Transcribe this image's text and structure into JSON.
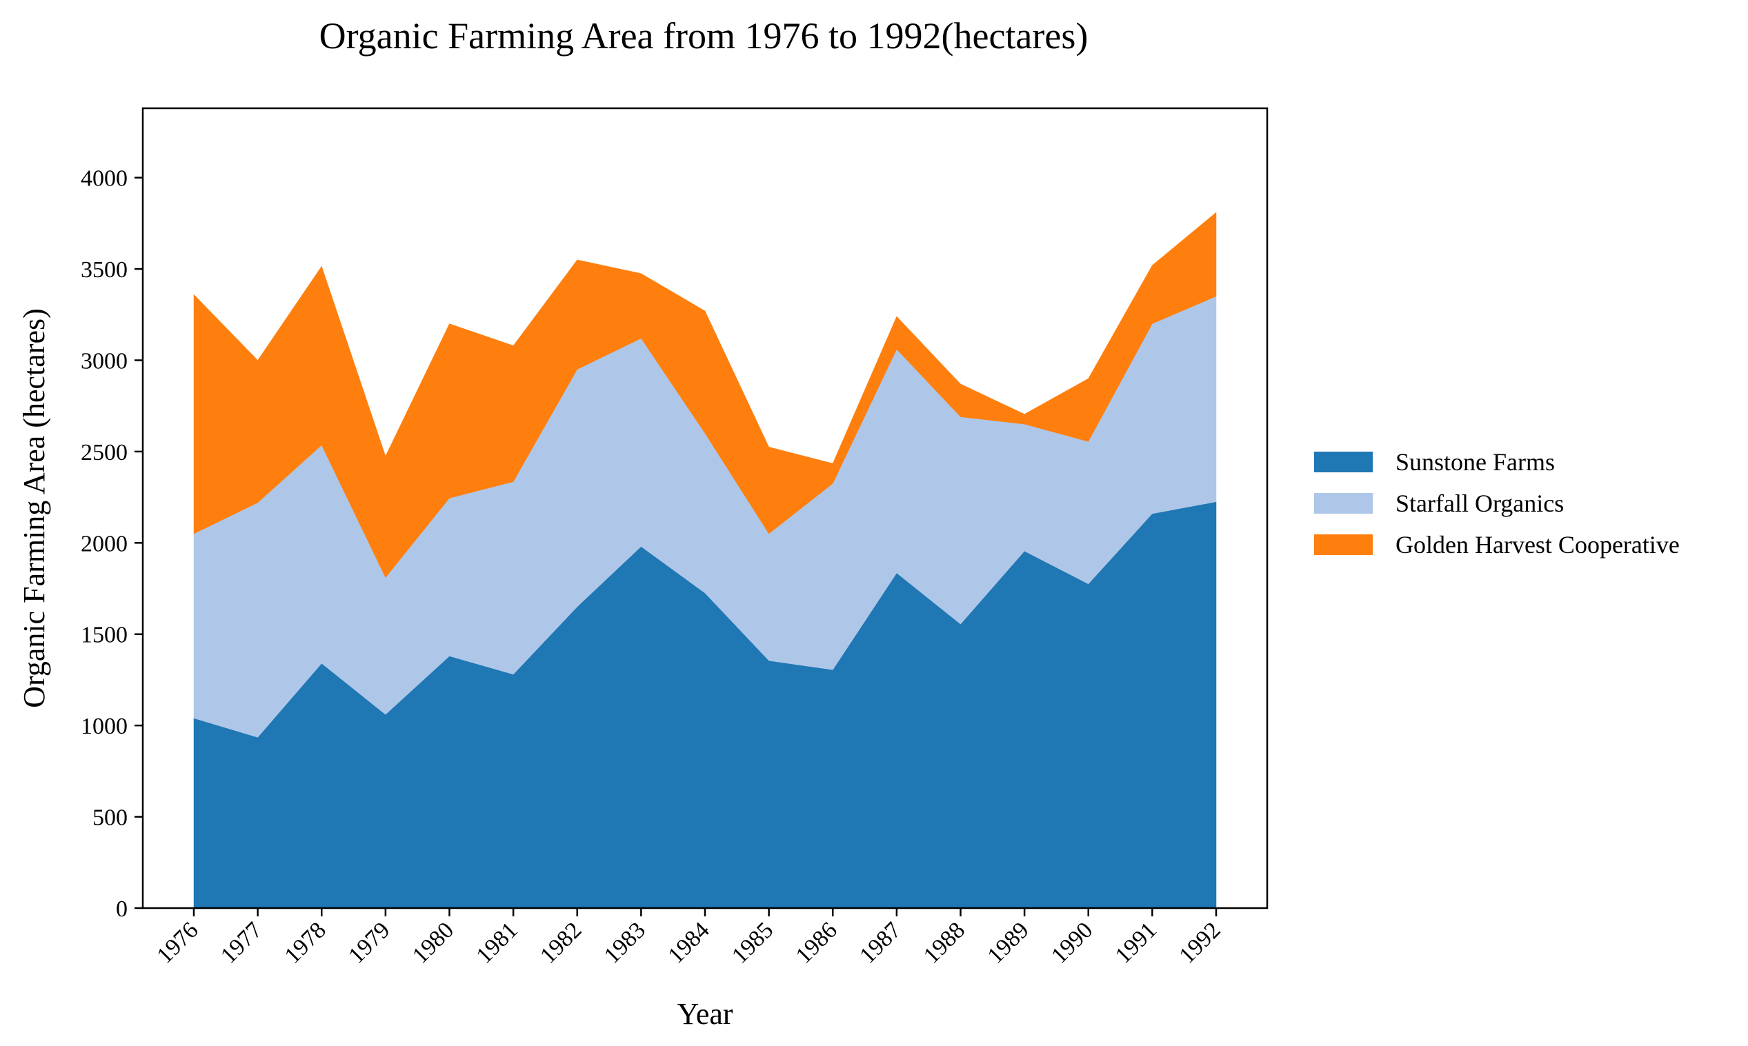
{
  "chart_data": {
    "type": "area",
    "stacked": true,
    "title": "Organic Farming Area from 1976 to 1992(hectares)",
    "xlabel": "Year",
    "ylabel": "Organic Farming Area (hectares)",
    "x": [
      "1976",
      "1977",
      "1978",
      "1979",
      "1980",
      "1981",
      "1982",
      "1983",
      "1984",
      "1985",
      "1986",
      "1987",
      "1988",
      "1989",
      "1990",
      "1991",
      "1992"
    ],
    "ylim": [
      0,
      4380
    ],
    "yticks": [
      0,
      500,
      1000,
      1500,
      2000,
      2500,
      3000,
      3500,
      4000
    ],
    "grid": false,
    "legend": "right",
    "series": [
      {
        "name": "Sunstone Farms",
        "color": "#1f77b4",
        "values": [
          1040,
          935,
          1340,
          1060,
          1380,
          1280,
          1650,
          1980,
          1725,
          1355,
          1305,
          1835,
          1555,
          1955,
          1775,
          2160,
          2225
        ]
      },
      {
        "name": "Starfall Organics",
        "color": "#aec7e8",
        "values": [
          1010,
          1285,
          1195,
          750,
          865,
          1055,
          1300,
          1140,
          875,
          695,
          1020,
          1225,
          1135,
          695,
          780,
          1040,
          1125
        ]
      },
      {
        "name": "Golden Harvest Cooperative",
        "color": "#ff7f0e",
        "values": [
          1310,
          780,
          980,
          665,
          955,
          745,
          600,
          355,
          670,
          475,
          110,
          180,
          180,
          55,
          345,
          320,
          460
        ]
      }
    ]
  }
}
